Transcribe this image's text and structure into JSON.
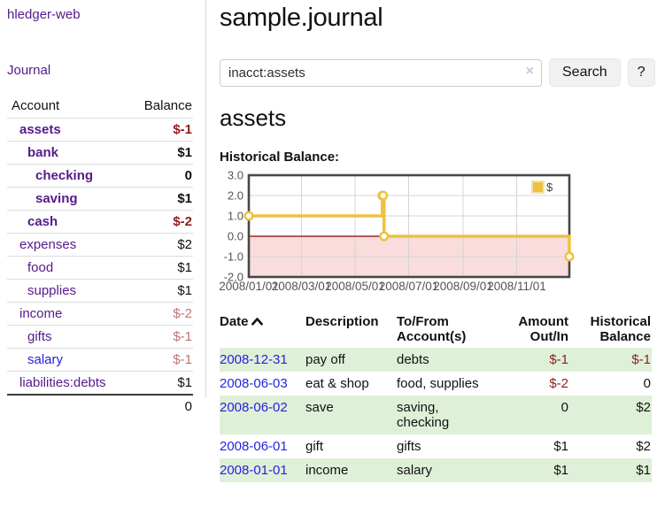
{
  "colors": {
    "link_purple": "#551a8b",
    "link_blue": "#2323e0",
    "negative_strong": "#941b1b",
    "negative_soft": "#bd7575",
    "row_green": "#dff0d8",
    "chart_line": "#edc240",
    "chart_negative_fill": "#f9dcdc",
    "chart_zero_line": "#8b0000"
  },
  "sidebar": {
    "app_title": "hledger-web",
    "nav_journal_label": "Journal",
    "accounts_table": {
      "headers": [
        "Account",
        "Balance"
      ],
      "rows": [
        {
          "name": "assets",
          "depth": 1,
          "bold": true,
          "link": "purple",
          "balance": "$-1",
          "balance_class": "neg-strong"
        },
        {
          "name": "bank",
          "depth": 2,
          "bold": true,
          "link": "purple",
          "balance": "$1",
          "balance_class": ""
        },
        {
          "name": "checking",
          "depth": 3,
          "bold": true,
          "link": "purple",
          "balance": "0",
          "balance_class": ""
        },
        {
          "name": "saving",
          "depth": 3,
          "bold": true,
          "link": "purple",
          "balance": "$1",
          "balance_class": ""
        },
        {
          "name": "cash",
          "depth": 2,
          "bold": true,
          "link": "purple",
          "balance": "$-2",
          "balance_class": "neg-strong"
        },
        {
          "name": "expenses",
          "depth": 1,
          "bold": false,
          "link": "purple",
          "balance": "$2",
          "balance_class": ""
        },
        {
          "name": "food",
          "depth": 2,
          "bold": false,
          "link": "purple",
          "balance": "$1",
          "balance_class": ""
        },
        {
          "name": "supplies",
          "depth": 2,
          "bold": false,
          "link": "purple",
          "balance": "$1",
          "balance_class": ""
        },
        {
          "name": "income",
          "depth": 1,
          "bold": false,
          "link": "purple",
          "balance": "$-2",
          "balance_class": "neg-soft"
        },
        {
          "name": "gifts",
          "depth": 2,
          "bold": false,
          "link": "purple",
          "balance": "$-1",
          "balance_class": "neg-soft"
        },
        {
          "name": "salary",
          "depth": 2,
          "bold": false,
          "link": "blue",
          "balance": "$-1",
          "balance_class": "neg-soft"
        },
        {
          "name": "liabilities:debts",
          "depth": 1,
          "bold": false,
          "link": "purple",
          "balance": "$1",
          "balance_class": ""
        }
      ],
      "total": "0"
    }
  },
  "main": {
    "title": "sample.journal",
    "search": {
      "value": "inacct:assets",
      "clear_icon": "×",
      "button_label": "Search",
      "help_label": "?"
    },
    "account_heading": "assets",
    "chart_heading": "Historical Balance:"
  },
  "chart_data": {
    "type": "line",
    "step": true,
    "title": "Historical Balance:",
    "series": [
      {
        "name": "$",
        "color": "#edc240",
        "points": [
          [
            "2008-01-01",
            1
          ],
          [
            "2008-06-01",
            2
          ],
          [
            "2008-06-02",
            2
          ],
          [
            "2008-06-03",
            0
          ],
          [
            "2008-12-31",
            -1
          ]
        ]
      }
    ],
    "xlim": [
      "2008-01-01",
      "2008-12-31"
    ],
    "ylim": [
      -2,
      3
    ],
    "yticks": [
      3.0,
      2.0,
      1.0,
      0.0,
      -1.0,
      -2.0
    ],
    "xticks": [
      "2008/01/01",
      "2008/03/01",
      "2008/05/01",
      "2008/07/01",
      "2008/09/01",
      "2008/11/01"
    ],
    "grid": true,
    "legend_position": "top-right",
    "negative_region_fill": "#f9dcdc",
    "zero_line_color": "#8b0000"
  },
  "register": {
    "headers": [
      "Date",
      "Description",
      "To/From Account(s)",
      "Amount Out/In",
      "Historical Balance"
    ],
    "rows": [
      {
        "date": "2008-12-31",
        "description": "pay off",
        "accounts": "debts",
        "accounts_wrap": false,
        "amount": "$-1",
        "amount_negative": true,
        "balance": "$-1",
        "balance_negative": true
      },
      {
        "date": "2008-06-03",
        "description": "eat & shop",
        "accounts": "food, supplies",
        "accounts_wrap": false,
        "amount": "$-2",
        "amount_negative": true,
        "balance": "0",
        "balance_negative": false
      },
      {
        "date": "2008-06-02",
        "description": "save",
        "accounts": "saving, checking",
        "accounts_wrap": true,
        "amount": "0",
        "amount_negative": false,
        "balance": "$2",
        "balance_negative": false
      },
      {
        "date": "2008-06-01",
        "description": "gift",
        "accounts": "gifts",
        "accounts_wrap": false,
        "amount": "$1",
        "amount_negative": false,
        "balance": "$2",
        "balance_negative": false
      },
      {
        "date": "2008-01-01",
        "description": "income",
        "accounts": "salary",
        "accounts_wrap": false,
        "amount": "$1",
        "amount_negative": false,
        "balance": "$1",
        "balance_negative": false
      }
    ]
  }
}
